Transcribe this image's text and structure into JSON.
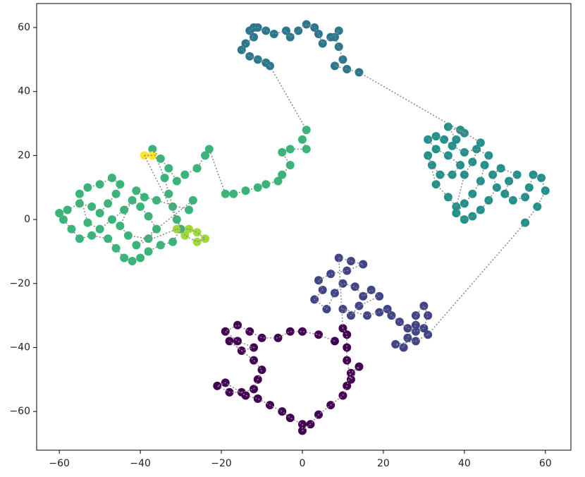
{
  "chart_data": {
    "type": "scatter",
    "xlim": [
      -65.6,
      66.3
    ],
    "ylim": [
      -72.1,
      67.5
    ],
    "xticks": [
      {
        "value": -60,
        "label": "−60"
      },
      {
        "value": -40,
        "label": "−40"
      },
      {
        "value": -20,
        "label": "−20"
      },
      0,
      20,
      40,
      60
    ],
    "yticks": [
      {
        "value": -60,
        "label": "−60"
      },
      {
        "value": -40,
        "label": "−40"
      },
      {
        "value": -20,
        "label": "−20"
      },
      0,
      20,
      40,
      60
    ],
    "series": [
      {
        "color": "#440154",
        "x": [
          8,
          4,
          0,
          -3,
          -6,
          -10,
          -13,
          -16,
          -19,
          -16,
          -12,
          -15,
          -18,
          -12,
          -10,
          -11,
          -12,
          -15,
          -18,
          -21,
          -19,
          -14,
          -11,
          -8,
          -5,
          -3,
          0,
          0,
          2,
          4,
          7,
          10,
          11,
          12,
          14,
          12,
          11,
          11,
          11,
          10
        ],
        "values": [
          -38,
          -36,
          -35,
          -35,
          -37,
          -37,
          -35,
          -33,
          -35,
          -38,
          -40,
          -41,
          -38,
          -44,
          -47,
          -50,
          -53,
          -54,
          -54,
          -52,
          -51,
          -55,
          -56,
          -58,
          -60,
          -62,
          -64,
          -66,
          -64,
          -61,
          -58,
          -55,
          -52,
          -48,
          -46,
          -50,
          -44,
          -40,
          -36,
          -34
        ]
      },
      {
        "color": "#414487",
        "x": [
          9,
          12,
          15,
          11,
          7,
          4,
          5,
          3,
          6,
          8,
          10,
          13,
          15,
          17,
          19,
          14,
          12,
          10,
          16,
          19,
          21,
          22,
          24,
          26,
          28,
          30,
          31,
          30,
          28,
          28,
          26,
          25,
          23,
          28,
          31
        ],
        "values": [
          -12,
          -13,
          -14,
          -16,
          -17,
          -19,
          -22,
          -25,
          -28,
          -23,
          -20,
          -21,
          -24,
          -22,
          -24,
          -27,
          -30,
          -28,
          -30,
          -29,
          -28,
          -30,
          -32,
          -34,
          -35,
          -34,
          -30,
          -27,
          -30,
          -33,
          -37,
          -40,
          -39,
          -38,
          -36
        ]
      },
      {
        "color": "#21918c",
        "x": [
          55,
          58,
          60,
          59,
          57,
          56,
          55,
          52,
          50,
          51,
          53,
          49,
          47,
          48,
          46,
          44,
          42,
          40,
          38,
          40,
          42,
          44,
          45,
          46,
          43,
          40,
          37,
          35,
          33,
          31,
          33,
          36,
          39,
          37,
          34,
          32,
          31,
          33,
          36,
          38,
          40,
          42,
          44,
          39,
          38,
          36,
          40
        ],
        "values": [
          -1,
          4,
          9,
          13,
          14,
          10,
          7,
          6,
          8,
          12,
          14,
          16,
          14,
          10,
          6,
          3,
          1,
          0,
          2,
          5,
          8,
          12,
          17,
          20,
          22,
          21,
          23,
          25,
          26,
          25,
          22,
          20,
          17,
          14,
          14,
          17,
          20,
          11,
          7,
          4,
          14,
          18,
          24,
          28,
          25,
          29,
          27
        ]
      },
      {
        "color": "#2a788e",
        "x": [
          14,
          11,
          8,
          10,
          9,
          8,
          9,
          7,
          5,
          4,
          3,
          1,
          -1,
          -3,
          -4,
          -7,
          -9,
          -11,
          -12,
          -13,
          -12,
          -14,
          -15,
          -13,
          -11,
          -9,
          -8
        ],
        "values": [
          46,
          47,
          48,
          50,
          54,
          57,
          59,
          57,
          55,
          58,
          60,
          61,
          59,
          57,
          59,
          58,
          59,
          60,
          60,
          59,
          57,
          55,
          53,
          51,
          50,
          49,
          48
        ]
      },
      {
        "color": "#35b779",
        "x": [
          1,
          0,
          1,
          -3,
          -5,
          -3,
          -5,
          -6,
          -9,
          -11,
          -14,
          -17,
          -19,
          -23,
          -24,
          -26,
          -29,
          -31,
          -33,
          -35,
          -37,
          -34,
          -33,
          -32,
          -31,
          -30,
          -32,
          -35,
          -38,
          -40,
          -42,
          -44,
          -46,
          -48,
          -52,
          -55,
          -57,
          -59,
          -60,
          -58,
          -55,
          -52,
          -50,
          -48,
          -46,
          -45,
          -47,
          -50,
          -53,
          -55,
          -53,
          -50,
          -47,
          -44,
          -42,
          -40,
          -38,
          -36,
          -38,
          -43,
          -45,
          -41,
          -39,
          -36,
          -28,
          -27,
          -41
        ],
        "values": [
          28,
          25,
          22,
          22,
          21,
          17,
          14,
          12,
          11,
          10,
          9,
          8,
          8,
          22,
          20,
          16,
          14,
          12,
          16,
          19,
          22,
          13,
          8,
          4,
          0,
          -3,
          -7,
          -8,
          -10,
          -12,
          -13,
          -12,
          -9,
          -6,
          -5,
          -6,
          -3,
          0,
          2,
          3,
          5,
          4,
          2,
          5,
          8,
          11,
          13,
          11,
          10,
          8,
          -1,
          -3,
          0,
          3,
          6,
          4,
          1,
          -3,
          -6,
          -5,
          -2,
          9,
          7,
          6,
          3,
          6,
          -8
        ]
      },
      {
        "color": "#a0da39",
        "x": [
          -31,
          -28,
          -26,
          -24,
          -26,
          -29
        ],
        "values": [
          -3,
          -3,
          -4,
          -6,
          -7,
          -5
        ]
      },
      {
        "color": "#fde725",
        "x": [
          -39,
          -37
        ],
        "values": [
          20,
          20
        ]
      }
    ]
  }
}
